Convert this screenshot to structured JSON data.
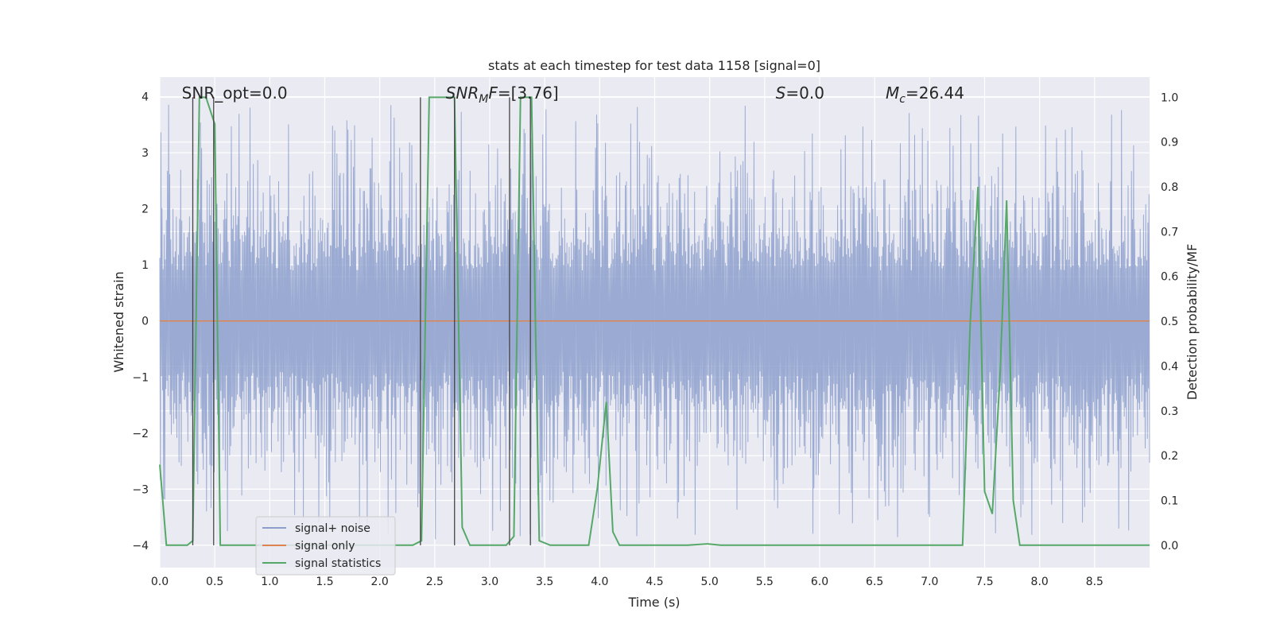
{
  "chart_data": {
    "type": "line",
    "title": "stats at each timestep for test data 1158 [signal=0]",
    "xlabel": "Time (s)",
    "ylabel": "Whitened strain",
    "ylabel_right": "Detection probability/MF",
    "xlim": [
      0.0,
      9.0
    ],
    "ylim": [
      -4.4,
      4.35
    ],
    "ylim_right": [
      -0.05,
      1.045
    ],
    "grid": true,
    "legend_placement": "lower-left",
    "x_ticks": [
      0.0,
      0.5,
      1.0,
      1.5,
      2.0,
      2.5,
      3.0,
      3.5,
      4.0,
      4.5,
      5.0,
      5.5,
      6.0,
      6.5,
      7.0,
      7.5,
      8.0,
      8.5
    ],
    "x_tick_labels": [
      "0.0",
      "0.5",
      "1.0",
      "1.5",
      "2.0",
      "2.5",
      "3.0",
      "3.5",
      "4.0",
      "4.5",
      "5.0",
      "5.5",
      "6.0",
      "6.5",
      "7.0",
      "7.5",
      "8.0",
      "8.5"
    ],
    "y_ticks": [
      -4,
      -3,
      -2,
      -1,
      0,
      1,
      2,
      3,
      4
    ],
    "y_tick_labels": [
      "−4",
      "−3",
      "−2",
      "−1",
      "0",
      "1",
      "2",
      "3",
      "4"
    ],
    "y_right_ticks": [
      0.0,
      0.1,
      0.2,
      0.3,
      0.4,
      0.5,
      0.6,
      0.7,
      0.8,
      0.9,
      1.0
    ],
    "y_right_tick_labels": [
      "0.0",
      "0.1",
      "0.2",
      "0.3",
      "0.4",
      "0.5",
      "0.6",
      "0.7",
      "0.8",
      "0.9",
      "1.0"
    ],
    "annotations": [
      {
        "text": "SNR_opt=0.0",
        "x": 0.2
      },
      {
        "text": "SNR_MF=[3.76]",
        "x": 2.6
      },
      {
        "text": "S=0.0",
        "x": 5.6
      },
      {
        "text": "M_c=26.44",
        "x": 6.6
      }
    ],
    "series": [
      {
        "name": "signal+ noise",
        "color": "#8c9fcc",
        "kind": "noise",
        "envelope_typical": [
          -1.6,
          1.6
        ],
        "envelope_extreme": [
          -4.0,
          3.9
        ]
      },
      {
        "name": "signal only",
        "color": "#dd8452",
        "x": [
          0.0,
          9.0
        ],
        "y": [
          0.0,
          0.0
        ]
      },
      {
        "name": "signal statistics",
        "color": "#55a868",
        "axis": "right",
        "x": [
          0.0,
          0.06,
          0.12,
          0.25,
          0.3,
          0.36,
          0.42,
          0.5,
          0.55,
          0.6,
          1.0,
          1.5,
          2.0,
          2.3,
          2.38,
          2.45,
          2.5,
          2.6,
          2.68,
          2.75,
          2.82,
          3.0,
          3.15,
          3.22,
          3.28,
          3.35,
          3.38,
          3.45,
          3.55,
          3.7,
          3.9,
          3.98,
          4.06,
          4.12,
          4.18,
          4.3,
          4.8,
          4.98,
          5.1,
          5.5,
          6.0,
          7.0,
          7.3,
          7.37,
          7.44,
          7.5,
          7.57,
          7.64,
          7.7,
          7.76,
          7.82,
          8.0,
          8.5,
          9.0
        ],
        "y": [
          0.18,
          0.0,
          0.0,
          0.0,
          0.01,
          1.0,
          1.0,
          0.94,
          0.0,
          0.0,
          0.0,
          0.0,
          0.0,
          0.0,
          0.01,
          1.0,
          1.0,
          1.0,
          1.0,
          0.04,
          0.0,
          0.0,
          0.0,
          0.02,
          1.0,
          1.0,
          1.0,
          0.01,
          0.0,
          0.0,
          0.0,
          0.13,
          0.32,
          0.03,
          0.0,
          0.0,
          0.0,
          0.003,
          0.0,
          0.0,
          0.0,
          0.0,
          0.0,
          0.5,
          0.8,
          0.12,
          0.07,
          0.38,
          0.77,
          0.1,
          0.0,
          0.0,
          0.0,
          0.0
        ]
      }
    ],
    "vlines": [
      0.3,
      0.49,
      2.37,
      2.68,
      3.18,
      3.37
    ]
  }
}
